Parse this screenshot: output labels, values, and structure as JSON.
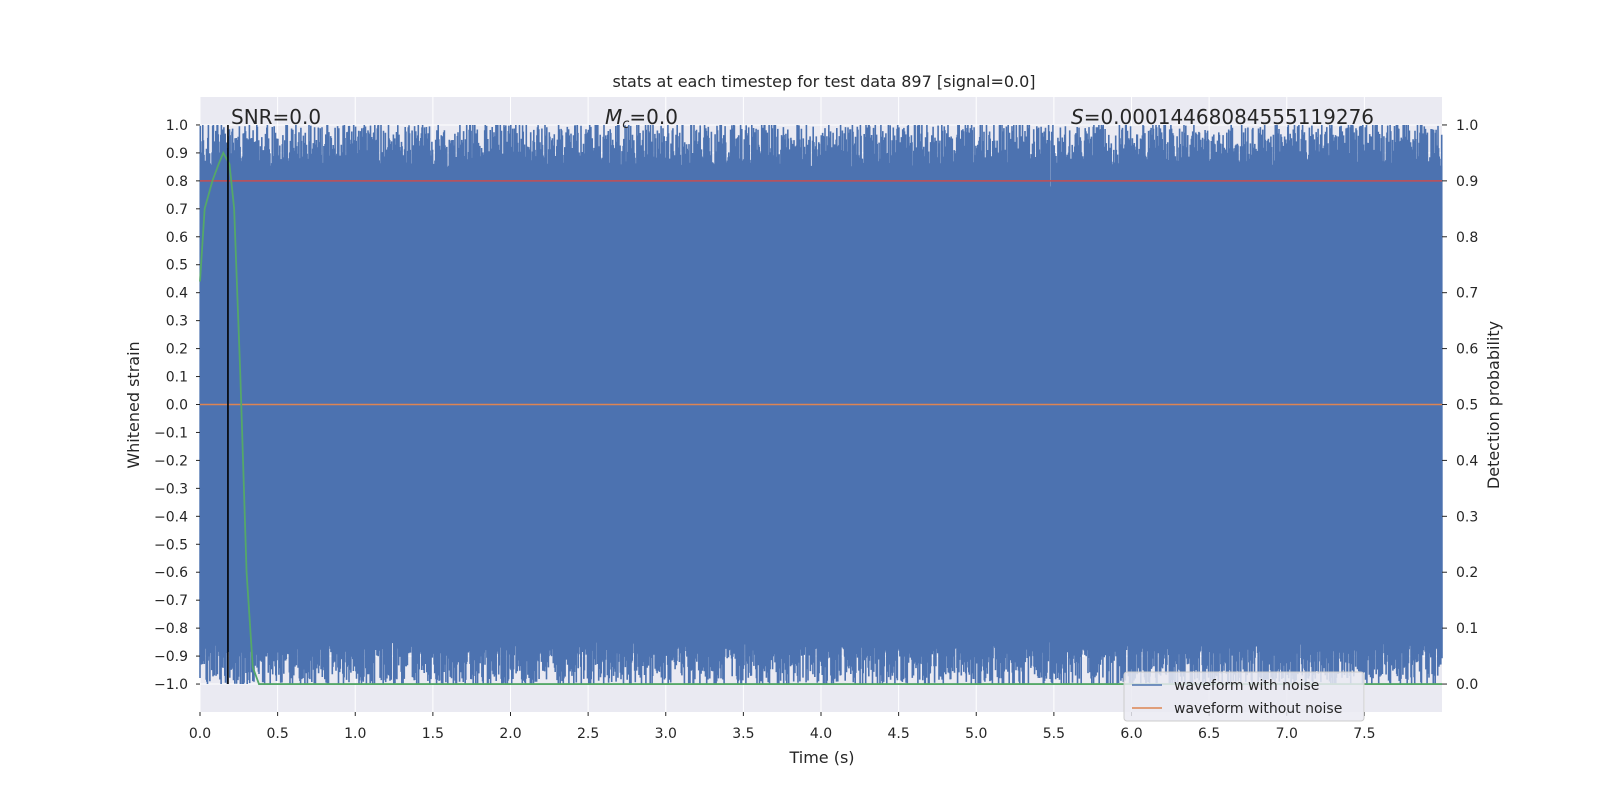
{
  "chart_data": {
    "type": "line",
    "title": "stats at each timestep for test data 897 [signal=0.0]",
    "xlabel": "Time (s)",
    "ylabel": "Whitened strain",
    "y2label": "Detection probability",
    "xlim": [
      0.0,
      8.0
    ],
    "ylim": [
      -1.1,
      1.1
    ],
    "y2lim": [
      -0.05,
      1.05
    ],
    "grid": true,
    "x_ticks": [
      0.0,
      0.5,
      1.0,
      1.5,
      2.0,
      2.5,
      3.0,
      3.5,
      4.0,
      4.5,
      5.0,
      5.5,
      6.0,
      6.5,
      7.0,
      7.5
    ],
    "x_tick_labels": [
      "0.0",
      "0.5",
      "1.0",
      "1.5",
      "2.0",
      "2.5",
      "3.0",
      "3.5",
      "4.0",
      "4.5",
      "5.0",
      "5.5",
      "6.0",
      "6.5",
      "7.0",
      "7.5"
    ],
    "y_ticks": [
      1.0,
      0.9,
      0.8,
      0.7,
      0.6,
      0.5,
      0.4,
      0.3,
      0.2,
      0.1,
      0.0,
      -0.1,
      -0.2,
      -0.3,
      -0.4,
      -0.5,
      -0.6,
      -0.7,
      -0.8,
      -0.9,
      -1.0
    ],
    "y_tick_labels": [
      "1.0",
      "0.9",
      "0.8",
      "0.7",
      "0.6",
      "0.5",
      "0.4",
      "0.3",
      "0.2",
      "0.1",
      "0.0",
      "−0.1",
      "−0.2",
      "−0.3",
      "−0.4",
      "−0.5",
      "−0.6",
      "−0.7",
      "−0.8",
      "−0.9",
      "−1.0"
    ],
    "y2_ticks": [
      1.0,
      0.9,
      0.8,
      0.7,
      0.6,
      0.5,
      0.4,
      0.3,
      0.2,
      0.1,
      0.0
    ],
    "y2_tick_labels": [
      "1.0",
      "0.9",
      "0.8",
      "0.7",
      "0.6",
      "0.5",
      "0.4",
      "0.3",
      "0.2",
      "0.1",
      "0.0"
    ],
    "series": [
      {
        "name": "waveform with noise",
        "color": "#4c72b0",
        "description": "dense whitened noise filling roughly -1.0 to 1.0",
        "envelope": {
          "upper": 1.0,
          "lower": -1.0,
          "typical_upper": 0.85,
          "typical_lower": -0.85
        }
      },
      {
        "name": "waveform without noise",
        "color": "#dd8452",
        "x": [
          0.0,
          8.0
        ],
        "values": [
          0.0,
          0.0
        ]
      },
      {
        "name": "detection probability",
        "axis": "right",
        "color": "#55a868",
        "x": [
          0.0,
          0.03,
          0.08,
          0.12,
          0.15,
          0.19,
          0.22,
          0.26,
          0.3,
          0.34,
          0.38,
          8.0
        ],
        "values": [
          0.72,
          0.85,
          0.9,
          0.93,
          0.95,
          0.93,
          0.85,
          0.55,
          0.2,
          0.03,
          0.0,
          0.0
        ]
      },
      {
        "name": "detection threshold",
        "axis": "right",
        "color": "#c44e52",
        "x": [
          0.0,
          8.0
        ],
        "values": [
          0.9,
          0.9
        ]
      }
    ],
    "vertical_marker": {
      "x": 0.18,
      "color": "#000000"
    },
    "annotations": {
      "snr": "SNR=0.0",
      "mc_symbol": "M",
      "mc_subscript": "c",
      "mc_value": "=0.0",
      "s_symbol": "S",
      "s_value": "=0.00014468084555119276"
    },
    "legend": {
      "position": "lower-right",
      "entries": [
        {
          "label": "waveform with noise",
          "color": "#4c72b0"
        },
        {
          "label": "waveform without noise",
          "color": "#dd8452"
        }
      ]
    }
  },
  "colors": {
    "plot_background": "#eaeaf2",
    "grid": "#ffffff"
  }
}
